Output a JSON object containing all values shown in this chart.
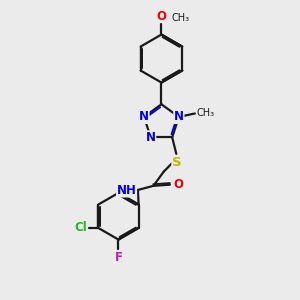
{
  "bg_color": "#ebebeb",
  "bond_color": "#1a1a1a",
  "N_color": "#0000ee",
  "O_color": "#ee0000",
  "S_color": "#bbbb00",
  "Cl_color": "#22bb22",
  "F_color": "#bb22bb",
  "line_width": 1.6,
  "font_size": 8.5,
  "fig_size": [
    3.0,
    3.0
  ],
  "dpi": 100,
  "xlim": [
    0,
    10
  ],
  "ylim": [
    0,
    13
  ]
}
